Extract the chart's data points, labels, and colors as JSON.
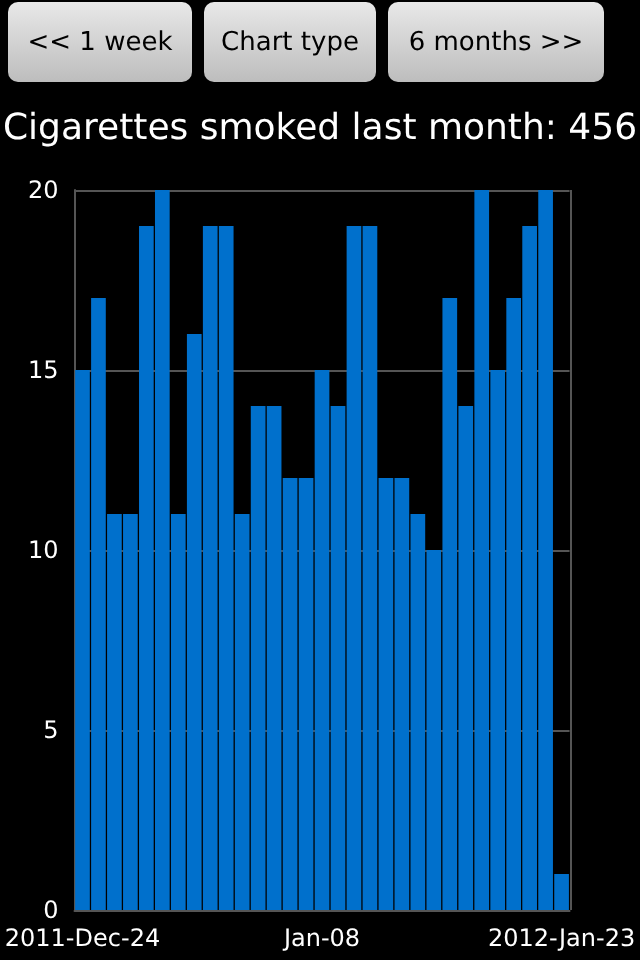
{
  "chart_data": {
    "type": "bar",
    "title": "Cigarettes smoked last month: 456",
    "annotations": [
      "<< 1 week",
      "Chart type",
      "6 months >>"
    ],
    "categories": [
      "2011-Dec-24",
      null,
      null,
      null,
      null,
      null,
      null,
      null,
      null,
      null,
      null,
      null,
      null,
      null,
      null,
      "Jan-08",
      null,
      null,
      null,
      null,
      null,
      null,
      null,
      null,
      null,
      null,
      null,
      null,
      null,
      null,
      "2012-Jan-23"
    ],
    "values": [
      15,
      17,
      11,
      11,
      19,
      20,
      11,
      16,
      19,
      19,
      11,
      14,
      14,
      12,
      12,
      15,
      14,
      19,
      19,
      12,
      12,
      11,
      10,
      17,
      14,
      20,
      15,
      17,
      19,
      20,
      1
    ],
    "color": "#0070cc",
    "ylim": [
      0,
      20
    ],
    "yticks": [
      0,
      5,
      10,
      15,
      20
    ],
    "grid": true
  }
}
